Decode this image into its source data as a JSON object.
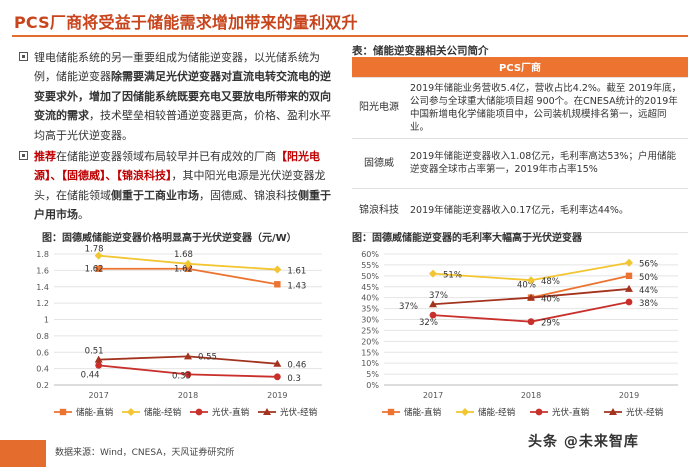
{
  "header": {
    "title": "PCS厂商将受益于储能需求增加带来的量利双升"
  },
  "bullets": {
    "b1": {
      "part1": "锂电储能系统的另一重要组成为储能逆变器，以光储系统为例，储能逆变器",
      "bold": "除需要满足光伏逆变器对直流电转交流电的逆变要求外，增加了因储能系统既要充电又要放电所带来的双向变流的需求",
      "part2": "，技术壁垒相较普通逆变器更高，价格、盈利水平均高于光伏逆变器。"
    },
    "b2": {
      "label": "推荐",
      "part1": "在储能逆变器领域布局较早并已有成效的厂商",
      "companies": "【阳光电源】、【固德威】、【锦浪科技】",
      "part2": "，其中阳光电源是光伏逆变器龙头，在储能领域",
      "bold1": "侧重于工商业市场",
      "part3": "，固德威、锦浪科技",
      "bold2": "侧重于户用市场",
      "part4": "。"
    }
  },
  "table": {
    "caption": "表：储能逆变器相关公司简介",
    "header": "PCS厂商",
    "rows": [
      {
        "name": "阳光电源",
        "desc": "2019年储能业务营收5.4亿，营收占比4.2%。截至 2019年底，公司参与全球重大储能项目超 900个。在CNESA统计的2019年中国新增电化学储能项目中，公司装机规模排名第一，远超同业。"
      },
      {
        "name": "固德威",
        "desc": "2019年储能逆变器收入1.08亿元，毛利率高达53%；户用储能逆变器全球市占率第一，2019年市占率15%"
      },
      {
        "name": "锦浪科技",
        "desc": "2019年储能逆变器收入0.17亿元，毛利率达44%。"
      }
    ]
  },
  "charts": {
    "left": {
      "caption": "图：固德威储能逆变器价格明显高于光伏逆变器（元/W）",
      "chart_data": {
        "type": "line",
        "categories": [
          "2017",
          "2018",
          "2019"
        ],
        "ylim": [
          0.2,
          1.8
        ],
        "yticks": [
          "0.2",
          "0.4",
          "0.6",
          "0.8",
          "1",
          "1.2",
          "1.4",
          "1.6",
          "1.8"
        ],
        "series": [
          {
            "name": "储能-直销",
            "color": "#ec7330",
            "marker": "square",
            "values": [
              1.62,
              1.62,
              1.43
            ],
            "labels": [
              "1.62",
              "1.62",
              "1.43"
            ]
          },
          {
            "name": "储能-经销",
            "color": "#f2c531",
            "marker": "diamond",
            "values": [
              1.78,
              1.68,
              1.61
            ],
            "labels": [
              "1.78",
              "1.68",
              "1.61"
            ]
          },
          {
            "name": "光伏-直销",
            "color": "#c9302c",
            "marker": "circle",
            "values": [
              0.44,
              0.33,
              0.3
            ],
            "labels": [
              "0.44",
              "0.33",
              "0.3"
            ]
          },
          {
            "name": "光伏-经销",
            "color": "#a3331e",
            "marker": "triangle",
            "values": [
              0.51,
              0.55,
              0.46
            ],
            "labels": [
              "0.51",
              "0.55",
              "0.46"
            ]
          }
        ]
      }
    },
    "right": {
      "caption": "图：固德威储能逆变器的毛利率大幅高于光伏逆变器",
      "chart_data": {
        "type": "line",
        "categories": [
          "2017",
          "2018",
          "2019"
        ],
        "ylim": [
          0,
          60
        ],
        "yticks": [
          "0%",
          "5%",
          "10%",
          "15%",
          "20%",
          "25%",
          "30%",
          "35%",
          "40%",
          "45%",
          "50%",
          "55%",
          "60%"
        ],
        "series": [
          {
            "name": "储能-直销",
            "color": "#ec7330",
            "marker": "square",
            "values": [
              null,
              40,
              50
            ],
            "labels": [
              "",
              "40%",
              "50%"
            ]
          },
          {
            "name": "储能-经销",
            "color": "#f2c531",
            "marker": "diamond",
            "values": [
              51,
              48,
              56
            ],
            "labels": [
              "51%",
              "48%",
              "56%"
            ]
          },
          {
            "name": "光伏-直销",
            "color": "#c9302c",
            "marker": "circle",
            "values": [
              32,
              29,
              38
            ],
            "labels": [
              "32%",
              "29%",
              "38%"
            ]
          },
          {
            "name": "光伏-经销",
            "color": "#a3331e",
            "marker": "triangle",
            "values": [
              37,
              40,
              44
            ],
            "labels": [
              "37%",
              "40%",
              "44%"
            ]
          }
        ],
        "extra_labels": [
          "37%"
        ]
      }
    }
  },
  "footer": {
    "source": "数据来源：Wind，CNESA，天风证券研究所",
    "watermark": "头条 @未来智库"
  }
}
